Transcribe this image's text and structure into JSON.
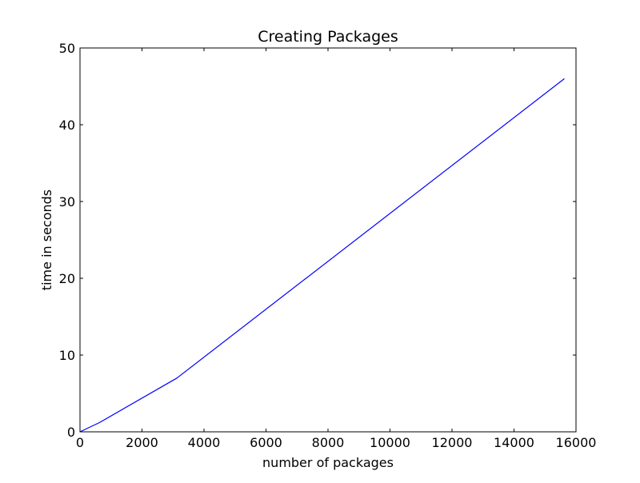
{
  "chart_data": {
    "type": "line",
    "title": "Creating Packages",
    "xlabel": "number of packages",
    "ylabel": "time in seconds",
    "xlim": [
      0,
      16000
    ],
    "ylim": [
      0,
      50
    ],
    "xticks": [
      0,
      2000,
      4000,
      6000,
      8000,
      10000,
      12000,
      14000,
      16000
    ],
    "yticks": [
      0,
      10,
      20,
      30,
      40,
      50
    ],
    "grid": false,
    "legend": "none",
    "series": [
      {
        "color": "#0000ff",
        "x": [
          0,
          625,
          3125,
          15625
        ],
        "y": [
          0,
          1.2,
          7.0,
          46.0
        ]
      }
    ]
  }
}
